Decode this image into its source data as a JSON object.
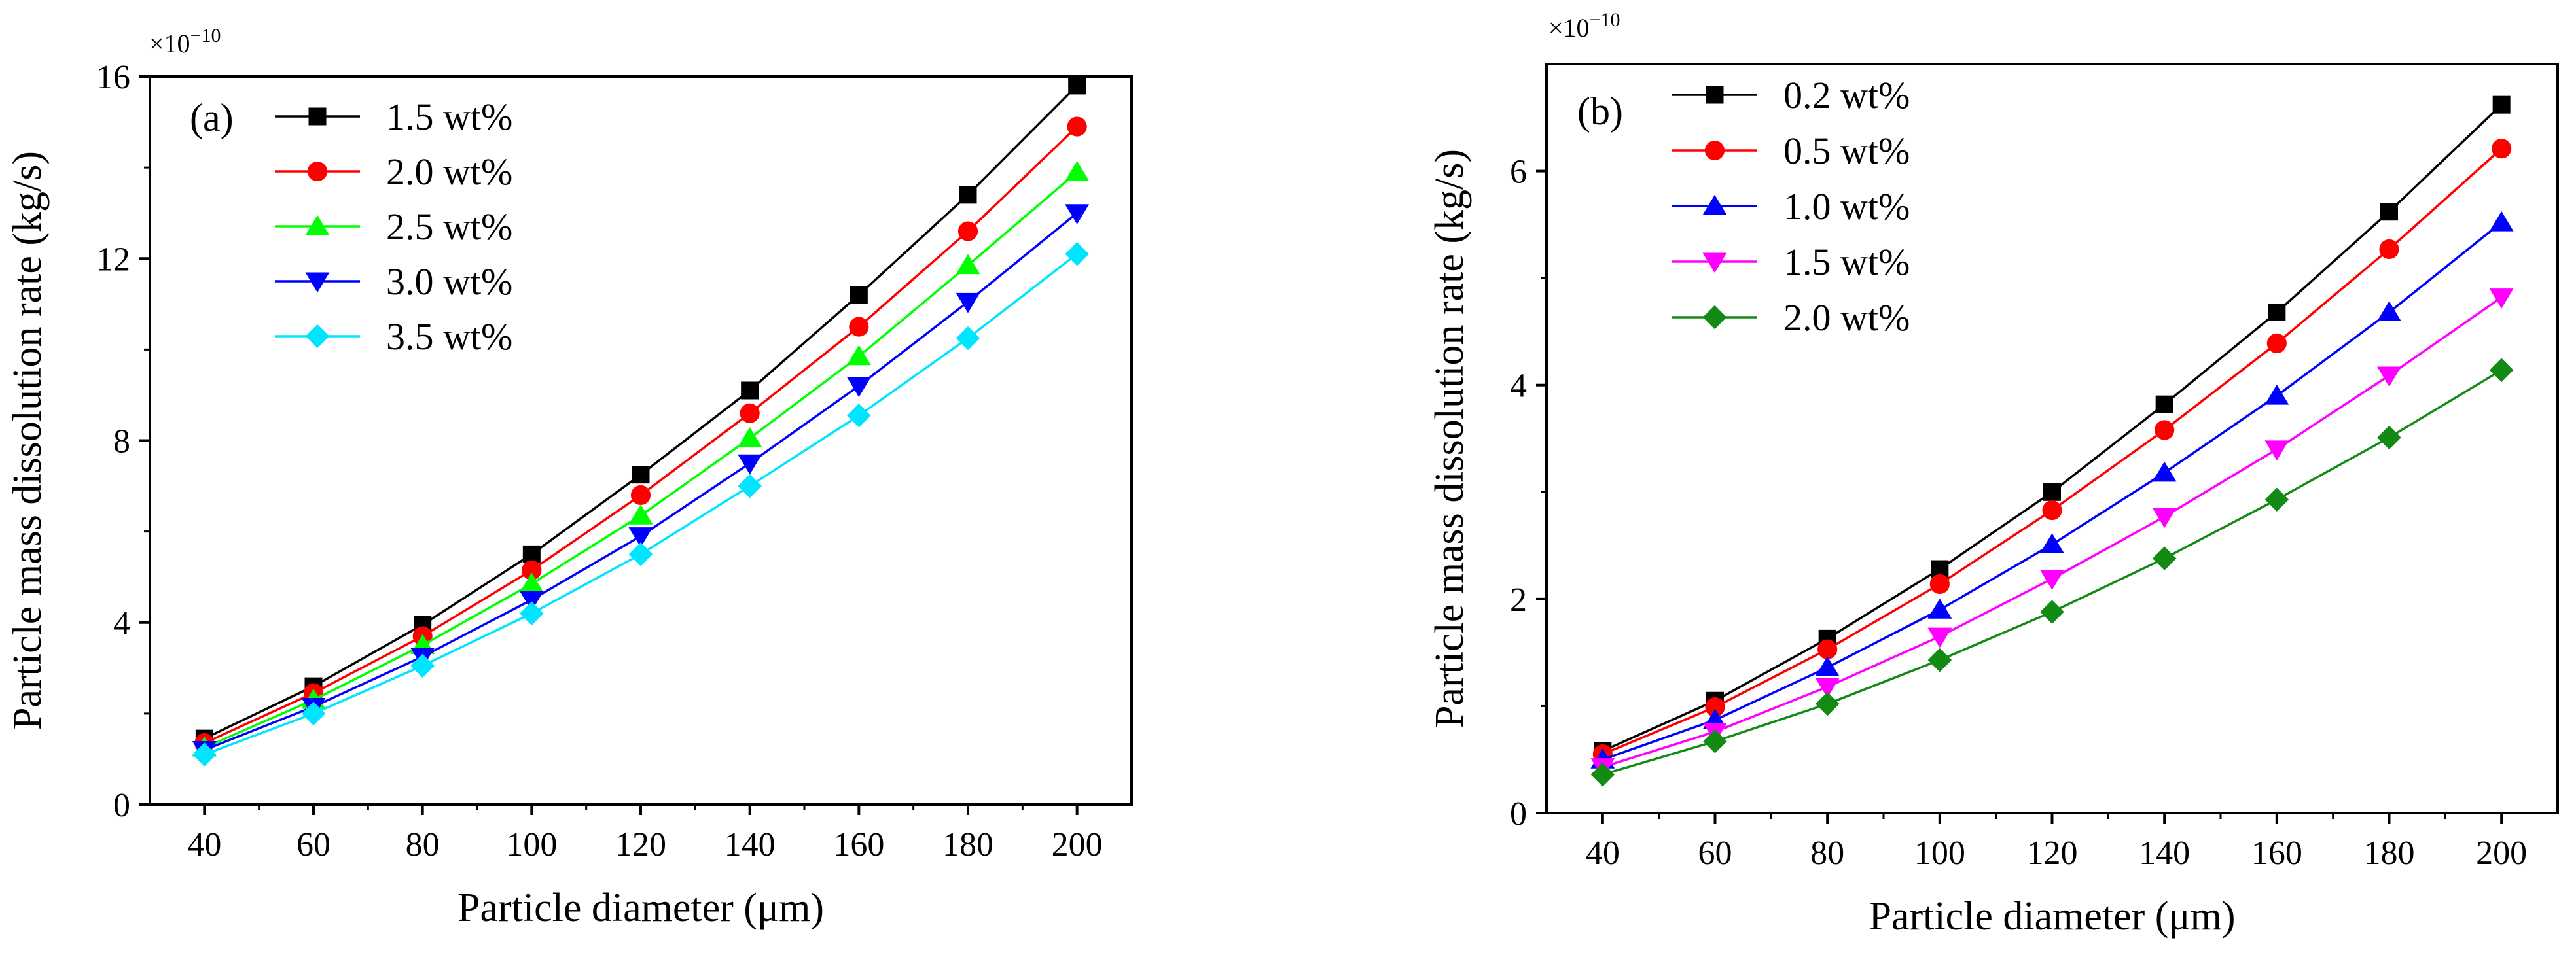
{
  "chart_data": [
    {
      "type": "line",
      "panel_label": "(a)",
      "xlabel": "Particle diameter (μm)",
      "ylabel": "Particle mass dissolution rate (kg/s)",
      "y_multiplier": "×10",
      "y_exponent": "−10",
      "x": [
        40,
        60,
        80,
        100,
        120,
        140,
        160,
        180,
        200
      ],
      "xlim": [
        30,
        210
      ],
      "ylim": [
        0,
        16
      ],
      "x_ticks": [
        40,
        60,
        80,
        100,
        120,
        140,
        160,
        180,
        200
      ],
      "y_ticks": [
        0,
        4,
        8,
        12,
        16
      ],
      "legend_position": "top-left",
      "series": [
        {
          "name": "1.5 wt%",
          "color": "#000000",
          "marker": "square",
          "values": [
            1.45,
            2.6,
            3.95,
            5.5,
            7.25,
            9.1,
            11.2,
            13.4,
            15.8
          ]
        },
        {
          "name": "2.0 wt%",
          "color": "#ff0000",
          "marker": "circle",
          "values": [
            1.35,
            2.45,
            3.7,
            5.15,
            6.8,
            8.6,
            10.5,
            12.6,
            14.9
          ]
        },
        {
          "name": "2.5 wt%",
          "color": "#00ff00",
          "marker": "triangle",
          "values": [
            1.25,
            2.3,
            3.5,
            4.85,
            6.35,
            8.05,
            9.85,
            11.85,
            13.9
          ]
        },
        {
          "name": "3.0 wt%",
          "color": "#0000ff",
          "marker": "triangle-down",
          "values": [
            1.2,
            2.15,
            3.25,
            4.5,
            5.9,
            7.5,
            9.2,
            11.05,
            13.0
          ]
        },
        {
          "name": "3.5 wt%",
          "color": "#00e5ff",
          "marker": "diamond",
          "values": [
            1.1,
            2.0,
            3.05,
            4.2,
            5.5,
            7.0,
            8.55,
            10.25,
            12.1
          ]
        }
      ]
    },
    {
      "type": "line",
      "panel_label": "(b)",
      "xlabel": "Particle diameter (μm)",
      "ylabel": "Particle mass dissolution rate (kg/s)",
      "y_multiplier": "×10",
      "y_exponent": "−10",
      "x": [
        40,
        60,
        80,
        100,
        120,
        140,
        160,
        180,
        200
      ],
      "xlim": [
        30,
        210
      ],
      "ylim": [
        0,
        7
      ],
      "x_ticks": [
        40,
        60,
        80,
        100,
        120,
        140,
        160,
        180,
        200
      ],
      "y_ticks": [
        0,
        2,
        4,
        6
      ],
      "legend_position": "top-left",
      "series": [
        {
          "name": "0.2 wt%",
          "color": "#000000",
          "marker": "square",
          "values": [
            0.58,
            1.05,
            1.63,
            2.28,
            3.0,
            3.82,
            4.68,
            5.62,
            6.62
          ]
        },
        {
          "name": "0.5 wt%",
          "color": "#ff0000",
          "marker": "circle",
          "values": [
            0.55,
            0.99,
            1.53,
            2.14,
            2.83,
            3.58,
            4.39,
            5.27,
            6.21
          ]
        },
        {
          "name": "1.0 wt%",
          "color": "#0000ff",
          "marker": "triangle",
          "values": [
            0.5,
            0.87,
            1.36,
            1.9,
            2.51,
            3.18,
            3.9,
            4.68,
            5.52
          ]
        },
        {
          "name": "1.5 wt%",
          "color": "#ff00ff",
          "marker": "triangle-down",
          "values": [
            0.43,
            0.76,
            1.18,
            1.65,
            2.19,
            2.77,
            3.4,
            4.09,
            4.82
          ]
        },
        {
          "name": "2.0 wt%",
          "color": "#138a13",
          "marker": "diamond",
          "values": [
            0.36,
            0.67,
            1.02,
            1.43,
            1.88,
            2.38,
            2.93,
            3.51,
            4.14
          ]
        }
      ]
    }
  ]
}
